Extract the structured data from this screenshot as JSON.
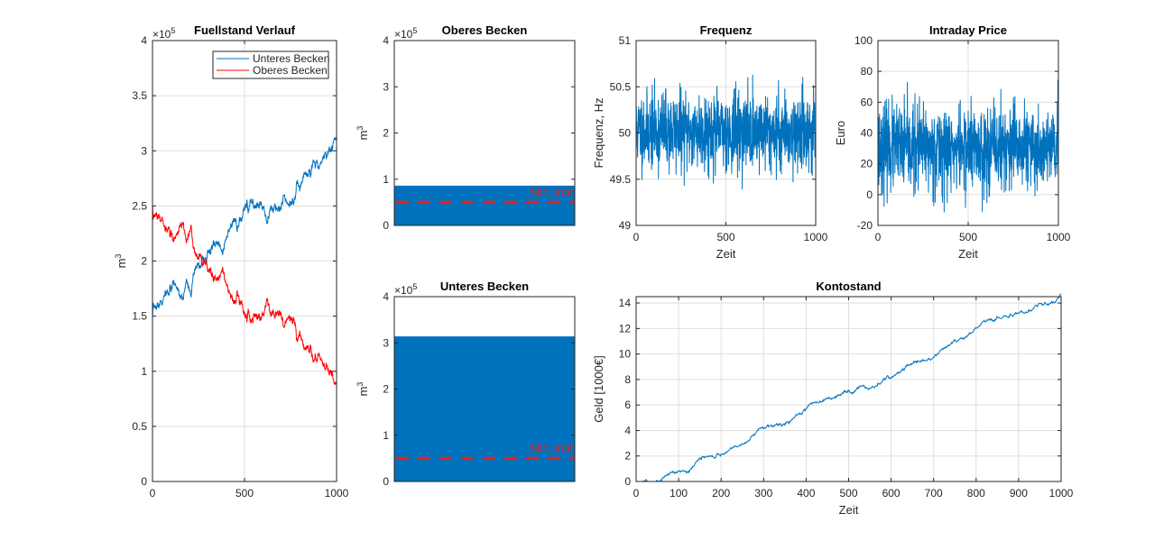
{
  "colors": {
    "blue": "#0072bd",
    "red": "#ff0000",
    "min_limit": "#d62728",
    "fill": "#0072bd"
  },
  "chart_data": [
    {
      "id": "fuellstand",
      "type": "line",
      "title": "Fuellstand Verlauf",
      "xlabel": "",
      "ylabel": "m",
      "ylabel_sup": "3",
      "xlim": [
        0,
        1000
      ],
      "ylim": [
        0,
        400000
      ],
      "xticks": [
        0,
        500,
        1000
      ],
      "yticks": [
        0,
        50000,
        100000,
        150000,
        200000,
        250000,
        300000,
        350000,
        400000
      ],
      "ytick_labels": [
        "0",
        "0.5",
        "1",
        "1.5",
        "2",
        "2.5",
        "3",
        "3.5",
        "4"
      ],
      "multiplier": {
        "base": "×10",
        "exp": "5"
      },
      "grid": true,
      "legend": "top-right",
      "series": [
        {
          "name": "Unteres Becken",
          "color": "#0072bd",
          "start": 150000,
          "end": 314000,
          "noise": 1500,
          "seed": 7
        },
        {
          "name": "Oberes Becken",
          "color": "#ff0000",
          "start": 250000,
          "end": 86000,
          "noise": 1500,
          "seed": 7,
          "mirror": 400000
        }
      ]
    },
    {
      "id": "oberes",
      "type": "bar",
      "title": "Oberes Becken",
      "ylabel": "m",
      "ylabel_sup": "3",
      "ylim": [
        0,
        400000
      ],
      "yticks": [
        0,
        100000,
        200000,
        300000,
        400000
      ],
      "ytick_labels": [
        "0",
        "1",
        "2",
        "3",
        "4"
      ],
      "multiplier": {
        "base": "×10",
        "exp": "5"
      },
      "grid": false,
      "value": 86000,
      "min_limit": 50000,
      "min_limit_label": "Min limit"
    },
    {
      "id": "unteres",
      "type": "bar",
      "title": "Unteres Becken",
      "ylabel": "m",
      "ylabel_sup": "3",
      "ylim": [
        0,
        400000
      ],
      "yticks": [
        0,
        100000,
        200000,
        300000,
        400000
      ],
      "ytick_labels": [
        "0",
        "1",
        "2",
        "3",
        "4"
      ],
      "multiplier": {
        "base": "×10",
        "exp": "5"
      },
      "grid": false,
      "value": 314000,
      "min_limit": 50000,
      "min_limit_label": "Min limit"
    },
    {
      "id": "frequenz",
      "type": "line",
      "title": "Frequenz",
      "xlabel": "Zeit",
      "ylabel": "Frequenz, Hz",
      "xlim": [
        0,
        1000
      ],
      "ylim": [
        49,
        51
      ],
      "xticks": [
        0,
        500,
        1000
      ],
      "yticks": [
        49,
        49.5,
        50,
        50.5,
        51
      ],
      "ytick_labels": [
        "49",
        "49.5",
        "50",
        "50.5",
        "51"
      ],
      "grid": true,
      "series": [
        {
          "name": "",
          "color": "#0072bd",
          "mean": 50.02,
          "noise": 0.21,
          "clip": [
            49.22,
            50.92
          ],
          "seed": 11
        }
      ]
    },
    {
      "id": "intraday",
      "type": "line",
      "title": "Intraday Price",
      "xlabel": "Zeit",
      "ylabel": "Euro",
      "xlim": [
        0,
        1000
      ],
      "ylim": [
        -20,
        100
      ],
      "xticks": [
        0,
        500,
        1000
      ],
      "yticks": [
        -20,
        0,
        20,
        40,
        60,
        80,
        100
      ],
      "ytick_labels": [
        "-20",
        "0",
        "20",
        "40",
        "60",
        "80",
        "100"
      ],
      "grid": true,
      "series": [
        {
          "name": "",
          "color": "#0072bd",
          "mean": 30,
          "noise": 14,
          "clip": [
            -16,
            84
          ],
          "seed": 23
        }
      ]
    },
    {
      "id": "kontostand",
      "type": "line",
      "title": "Kontostand",
      "xlabel": "Zeit",
      "ylabel": "Geld [1000€]",
      "xlim": [
        0,
        1000
      ],
      "ylim": [
        0,
        14.5
      ],
      "xticks": [
        0,
        100,
        200,
        300,
        400,
        500,
        600,
        700,
        800,
        900,
        1000
      ],
      "yticks": [
        0,
        2,
        4,
        6,
        8,
        10,
        12,
        14
      ],
      "ytick_labels": [
        "0",
        "2",
        "4",
        "6",
        "8",
        "10",
        "12",
        "14"
      ],
      "grid": true,
      "series": [
        {
          "name": "",
          "color": "#0072bd",
          "start": 0,
          "end": 14.4,
          "flat_until": 15,
          "noise": 0.05,
          "seed": 5
        }
      ]
    }
  ]
}
